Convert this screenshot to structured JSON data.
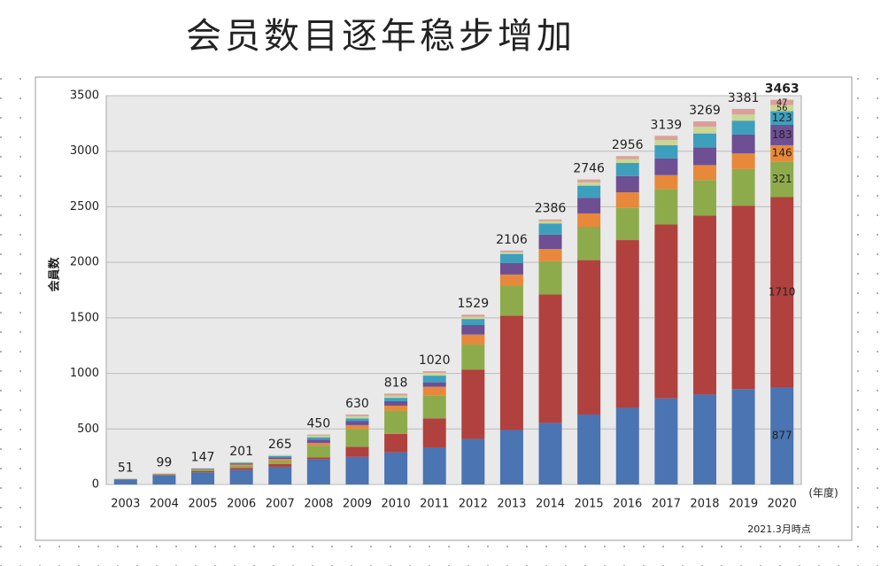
{
  "chart_data": {
    "type": "stacked-bar",
    "title": "会员数目逐年稳步增加",
    "y_label": "会員数",
    "x_unit": "(年度)",
    "note": "2021.3月時点",
    "categories": [
      "2003",
      "2004",
      "2005",
      "2006",
      "2007",
      "2008",
      "2009",
      "2010",
      "2011",
      "2012",
      "2013",
      "2014",
      "2015",
      "2016",
      "2017",
      "2018",
      "2019",
      "2020"
    ],
    "series": [
      {
        "color": "#4a74b2",
        "values": [
          45,
          80,
          110,
          130,
          160,
          225,
          250,
          290,
          335,
          410,
          490,
          555,
          630,
          690,
          775,
          810,
          860,
          877
        ]
      },
      {
        "color": "#b0413e",
        "values": [
          2,
          6,
          12,
          20,
          25,
          20,
          90,
          165,
          260,
          625,
          1030,
          1155,
          1390,
          1510,
          1565,
          1610,
          1650,
          1710
        ]
      },
      {
        "color": "#8eab4c",
        "values": [
          2,
          5,
          10,
          20,
          30,
          105,
          160,
          210,
          205,
          225,
          270,
          300,
          300,
          290,
          320,
          320,
          330,
          321
        ]
      },
      {
        "color": "#e8883a",
        "values": [
          1,
          3,
          5,
          10,
          15,
          25,
          35,
          45,
          80,
          90,
          100,
          110,
          120,
          140,
          125,
          135,
          140,
          146
        ]
      },
      {
        "color": "#6e4f93",
        "values": [
          1,
          3,
          5,
          10,
          15,
          30,
          35,
          40,
          40,
          85,
          105,
          130,
          140,
          145,
          150,
          160,
          170,
          183
        ]
      },
      {
        "color": "#3e9fbd",
        "values": [
          0,
          1,
          3,
          6,
          10,
          20,
          25,
          30,
          60,
          55,
          80,
          100,
          110,
          120,
          120,
          125,
          125,
          123
        ]
      },
      {
        "color": "#c9d993",
        "values": [
          0,
          1,
          1,
          3,
          6,
          15,
          20,
          20,
          25,
          20,
          16,
          20,
          30,
          35,
          45,
          60,
          55,
          56
        ]
      },
      {
        "color": "#dc9f9c",
        "values": [
          0,
          0,
          1,
          2,
          4,
          10,
          15,
          18,
          15,
          19,
          15,
          16,
          26,
          26,
          39,
          49,
          51,
          47
        ]
      }
    ],
    "totals": [
      51,
      99,
      147,
      201,
      265,
      450,
      630,
      818,
      1020,
      1529,
      2106,
      2386,
      2746,
      2956,
      3139,
      3269,
      3381,
      3463
    ],
    "ylim": [
      0,
      3500
    ],
    "yticks": [
      0,
      500,
      1000,
      1500,
      2000,
      2500,
      3000,
      3500
    ],
    "grid": true
  }
}
